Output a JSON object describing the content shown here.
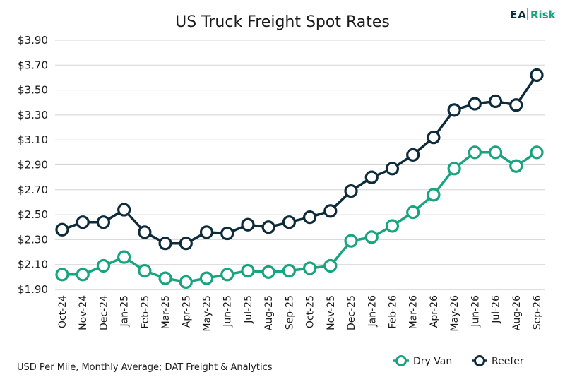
{
  "chart_data": {
    "type": "line",
    "title": "US Truck Freight Spot Rates",
    "footnote": "USD Per Mile, Monthly Average; DAT Freight & Analytics",
    "ylim": [
      1.9,
      3.9
    ],
    "yticks": [
      "$1.90",
      "$2.10",
      "$2.30",
      "$2.50",
      "$2.70",
      "$2.90",
      "$3.10",
      "$3.30",
      "$3.50",
      "$3.70",
      "$3.90"
    ],
    "ytick_values": [
      1.9,
      2.1,
      2.3,
      2.5,
      2.7,
      2.9,
      3.1,
      3.3,
      3.5,
      3.7,
      3.9
    ],
    "categories": [
      "Oct-24",
      "Nov-24",
      "Dec-24",
      "Jan-25",
      "Feb-25",
      "Mar-25",
      "Apr-25",
      "May-25",
      "Jun-25",
      "Jul-25",
      "Aug-25",
      "Sep-25",
      "Oct-25",
      "Nov-25",
      "Dec-25",
      "Jan-26",
      "Feb-26",
      "Mar-26",
      "Apr-26",
      "May-26",
      "Jun-26",
      "Jul-26",
      "Aug-26",
      "Sep-26"
    ],
    "series": [
      {
        "name": "Dry Van",
        "color": "#1aa37f",
        "values": [
          2.02,
          2.02,
          2.09,
          2.16,
          2.05,
          1.99,
          1.96,
          1.99,
          2.02,
          2.05,
          2.04,
          2.05,
          2.07,
          2.09,
          2.29,
          2.32,
          2.41,
          2.52,
          2.66,
          2.87,
          3.0,
          3.0,
          2.89,
          3.0
        ]
      },
      {
        "name": "Reefer",
        "color": "#0d2b3a",
        "values": [
          2.38,
          2.44,
          2.44,
          2.54,
          2.36,
          2.27,
          2.27,
          2.36,
          2.35,
          2.42,
          2.4,
          2.44,
          2.48,
          2.53,
          2.69,
          2.8,
          2.87,
          2.98,
          3.12,
          3.34,
          3.39,
          3.41,
          3.38,
          3.62
        ]
      }
    ],
    "grid": true,
    "legend_position": "bottom-right"
  },
  "logo": {
    "part1": "EA",
    "part2": "Risk"
  }
}
